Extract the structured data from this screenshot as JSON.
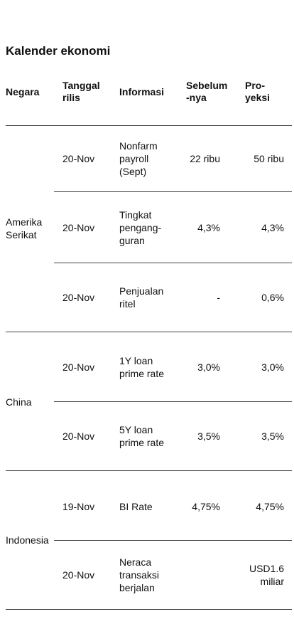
{
  "title": "Kalender ekonomi",
  "headers": {
    "negara": "Negara",
    "tanggal": [
      "Tanggal",
      "rilis"
    ],
    "informasi": "Informasi",
    "sebelumnya": [
      "Sebelum",
      "-nya"
    ],
    "proyeksi": [
      "Pro-",
      "yeksi"
    ]
  },
  "countries": [
    {
      "name": [
        "Amerika",
        "Serikat"
      ]
    },
    {
      "name": [
        "China"
      ]
    },
    {
      "name": [
        "Indonesia"
      ]
    }
  ],
  "rows": [
    {
      "date": "20-Nov",
      "info": [
        "Nonfarm",
        "payroll",
        "(Sept)"
      ],
      "prev": [
        "22 ribu"
      ],
      "proj": [
        "50 ribu"
      ]
    },
    {
      "date": "20-Nov",
      "info": [
        "Tingkat",
        "pengang-",
        "guran"
      ],
      "prev": [
        "4,3%"
      ],
      "proj": [
        "4,3%"
      ]
    },
    {
      "date": "20-Nov",
      "info": [
        "Penjualan",
        "ritel"
      ],
      "prev": [
        "-"
      ],
      "proj": [
        "0,6%"
      ]
    },
    {
      "date": "20-Nov",
      "info": [
        "1Y loan",
        "prime rate"
      ],
      "prev": [
        "3,0%"
      ],
      "proj": [
        "3,0%"
      ]
    },
    {
      "date": "20-Nov",
      "info": [
        "5Y loan",
        "prime rate"
      ],
      "prev": [
        "3,5%"
      ],
      "proj": [
        "3,5%"
      ]
    },
    {
      "date": "19-Nov",
      "info": [
        "BI Rate"
      ],
      "prev": [
        "4,75%"
      ],
      "proj": [
        "4,75%"
      ]
    },
    {
      "date": "20-Nov",
      "info": [
        "Neraca",
        "transaksi",
        "berjalan"
      ],
      "prev": [],
      "proj": [
        "USD1.6",
        "miliar"
      ]
    }
  ]
}
